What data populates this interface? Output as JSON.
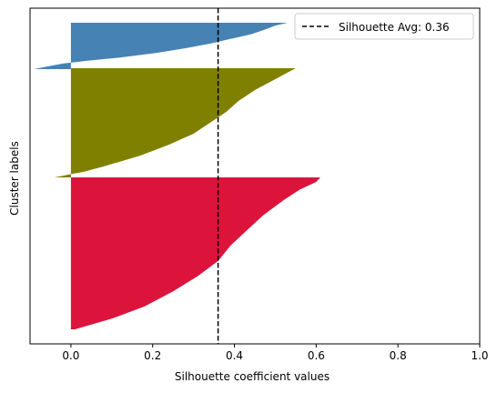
{
  "chart_data": {
    "type": "silhouette",
    "xlabel": "Silhouette coefficient values",
    "ylabel": "Cluster labels",
    "xlim": [
      -0.1,
      1.0
    ],
    "xticks": [
      0.0,
      0.2,
      0.4,
      0.6,
      0.8,
      1.0
    ],
    "xtick_labels": [
      "0.0",
      "0.2",
      "0.4",
      "0.6",
      "0.8",
      "1.0"
    ],
    "y_ticks_shown": false,
    "grid": false,
    "legend_position": "top-right",
    "average_line": {
      "label": "Silhouette Avg: 0.36",
      "value": 0.36,
      "style": "dashed",
      "color": "#000000"
    },
    "clusters": [
      {
        "color": "#4682b4",
        "profile": [
          [
            0,
            0.53
          ],
          [
            0.06,
            0.5
          ],
          [
            0.16,
            0.47
          ],
          [
            0.25,
            0.44
          ],
          [
            0.35,
            0.39
          ],
          [
            0.45,
            0.34
          ],
          [
            0.55,
            0.28
          ],
          [
            0.65,
            0.21
          ],
          [
            0.75,
            0.12
          ],
          [
            0.82,
            0.04
          ],
          [
            0.86,
            0.0
          ],
          [
            0.88,
            -0.02
          ],
          [
            0.93,
            -0.05
          ],
          [
            1.0,
            -0.09
          ]
        ]
      },
      {
        "color": "#808000",
        "profile": [
          [
            0,
            0.55
          ],
          [
            0.04,
            0.53
          ],
          [
            0.1,
            0.5
          ],
          [
            0.2,
            0.45
          ],
          [
            0.3,
            0.41
          ],
          [
            0.4,
            0.38
          ],
          [
            0.5,
            0.34
          ],
          [
            0.6,
            0.3
          ],
          [
            0.7,
            0.24
          ],
          [
            0.8,
            0.17
          ],
          [
            0.9,
            0.08
          ],
          [
            0.95,
            0.03
          ],
          [
            0.97,
            0.0
          ],
          [
            0.985,
            -0.02
          ],
          [
            1.0,
            -0.04
          ]
        ]
      },
      {
        "color": "#dc143c",
        "profile": [
          [
            0,
            0.61
          ],
          [
            0.03,
            0.6
          ],
          [
            0.08,
            0.56
          ],
          [
            0.15,
            0.52
          ],
          [
            0.25,
            0.47
          ],
          [
            0.35,
            0.43
          ],
          [
            0.45,
            0.39
          ],
          [
            0.55,
            0.36
          ],
          [
            0.65,
            0.31
          ],
          [
            0.75,
            0.25
          ],
          [
            0.85,
            0.18
          ],
          [
            0.93,
            0.1
          ],
          [
            1.0,
            0.01
          ]
        ]
      }
    ]
  }
}
